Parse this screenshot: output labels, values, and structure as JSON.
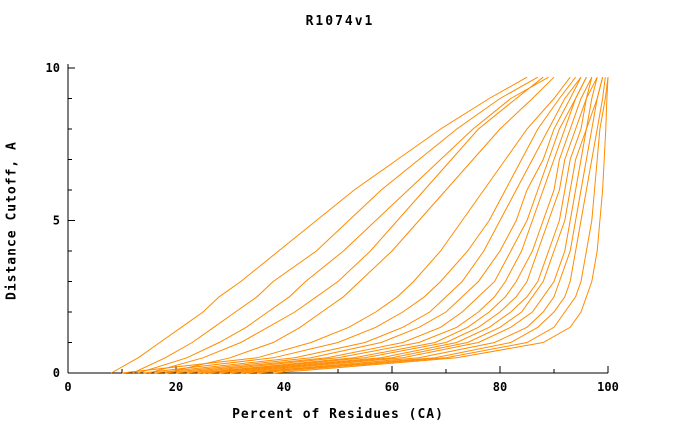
{
  "chart_data": {
    "type": "line",
    "title": "R1074v1",
    "xlabel": "Percent of Residues (CA)",
    "ylabel": "Distance Cutoff, A",
    "xlim": [
      0,
      100
    ],
    "ylim": [
      0,
      10
    ],
    "xticks": [
      0,
      20,
      40,
      60,
      80,
      100
    ],
    "xticks_minor": [
      10,
      30,
      50,
      70,
      90
    ],
    "yticks": [
      0,
      5,
      10
    ],
    "yticks_minor": [
      1,
      2,
      3,
      4,
      6,
      7,
      8,
      9
    ],
    "line_color": "#ff8c00",
    "axis_color": "#000000",
    "grid": false,
    "legend": "none",
    "y_levels": [
      0,
      0.5,
      1,
      1.5,
      2,
      2.5,
      3,
      4,
      5,
      6,
      7,
      8,
      9,
      9.7
    ],
    "series": [
      {
        "x": [
          8,
          13,
          17,
          21,
          25,
          28,
          32,
          39,
          46,
          53,
          61,
          69,
          78,
          85
        ]
      },
      {
        "x": [
          12,
          18,
          23,
          27,
          31,
          35,
          38,
          46,
          52,
          58,
          65,
          72,
          80,
          87
        ]
      },
      {
        "x": [
          13,
          22,
          28,
          33,
          37,
          41,
          44,
          51,
          57,
          63,
          69,
          75,
          82,
          89
        ]
      },
      {
        "x": [
          15,
          25,
          32,
          37,
          42,
          46,
          50,
          56,
          61,
          66,
          71,
          76,
          83,
          88
        ]
      },
      {
        "x": [
          18,
          30,
          38,
          43,
          47,
          51,
          54,
          60,
          65,
          70,
          75,
          80,
          86,
          90
        ]
      },
      {
        "x": [
          10,
          35,
          45,
          52,
          57,
          61,
          64,
          69,
          73,
          77,
          81,
          85,
          90,
          93
        ]
      },
      {
        "x": [
          14,
          38,
          50,
          57,
          62,
          66,
          69,
          74,
          78,
          81,
          84,
          87,
          91,
          94
        ]
      },
      {
        "x": [
          16,
          42,
          55,
          62,
          67,
          70,
          73,
          77,
          80,
          83,
          86,
          89,
          92,
          95
        ]
      },
      {
        "x": [
          18,
          45,
          58,
          65,
          70,
          73,
          76,
          80,
          83,
          85,
          88,
          90,
          93,
          95
        ]
      },
      {
        "x": [
          20,
          48,
          62,
          69,
          73,
          76,
          79,
          82,
          85,
          87,
          89,
          91,
          94,
          96
        ]
      },
      {
        "x": [
          22,
          50,
          65,
          72,
          76,
          79,
          81,
          84,
          86,
          88,
          90,
          92,
          94,
          96
        ]
      },
      {
        "x": [
          24,
          53,
          68,
          74,
          78,
          81,
          83,
          86,
          88,
          90,
          91,
          93,
          95,
          97
        ]
      },
      {
        "x": [
          25,
          55,
          70,
          76,
          80,
          83,
          85,
          87,
          89,
          91,
          92,
          94,
          96,
          97
        ]
      },
      {
        "x": [
          26,
          58,
          72,
          78,
          82,
          85,
          87,
          89,
          91,
          92,
          93,
          95,
          96,
          98
        ]
      },
      {
        "x": [
          28,
          60,
          74,
          80,
          84,
          86,
          88,
          90,
          92,
          93,
          94,
          96,
          97,
          98
        ]
      },
      {
        "x": [
          30,
          62,
          76,
          82,
          86,
          88,
          90,
          92,
          93,
          94,
          95,
          96,
          98,
          99
        ]
      },
      {
        "x": [
          32,
          65,
          79,
          85,
          88,
          90,
          91,
          93,
          94,
          95,
          96,
          97,
          98,
          99
        ]
      },
      {
        "x": [
          33,
          68,
          82,
          87,
          90,
          92,
          93,
          94,
          95,
          96,
          97,
          98,
          99,
          99.5
        ]
      },
      {
        "x": [
          35,
          70,
          85,
          90,
          92,
          94,
          95,
          96,
          97,
          97.5,
          98,
          98.5,
          99.5,
          100
        ]
      },
      {
        "x": [
          38,
          72,
          88,
          93,
          95,
          96,
          97,
          98,
          98.5,
          99,
          99.3,
          99.6,
          99.8,
          100
        ]
      }
    ]
  }
}
